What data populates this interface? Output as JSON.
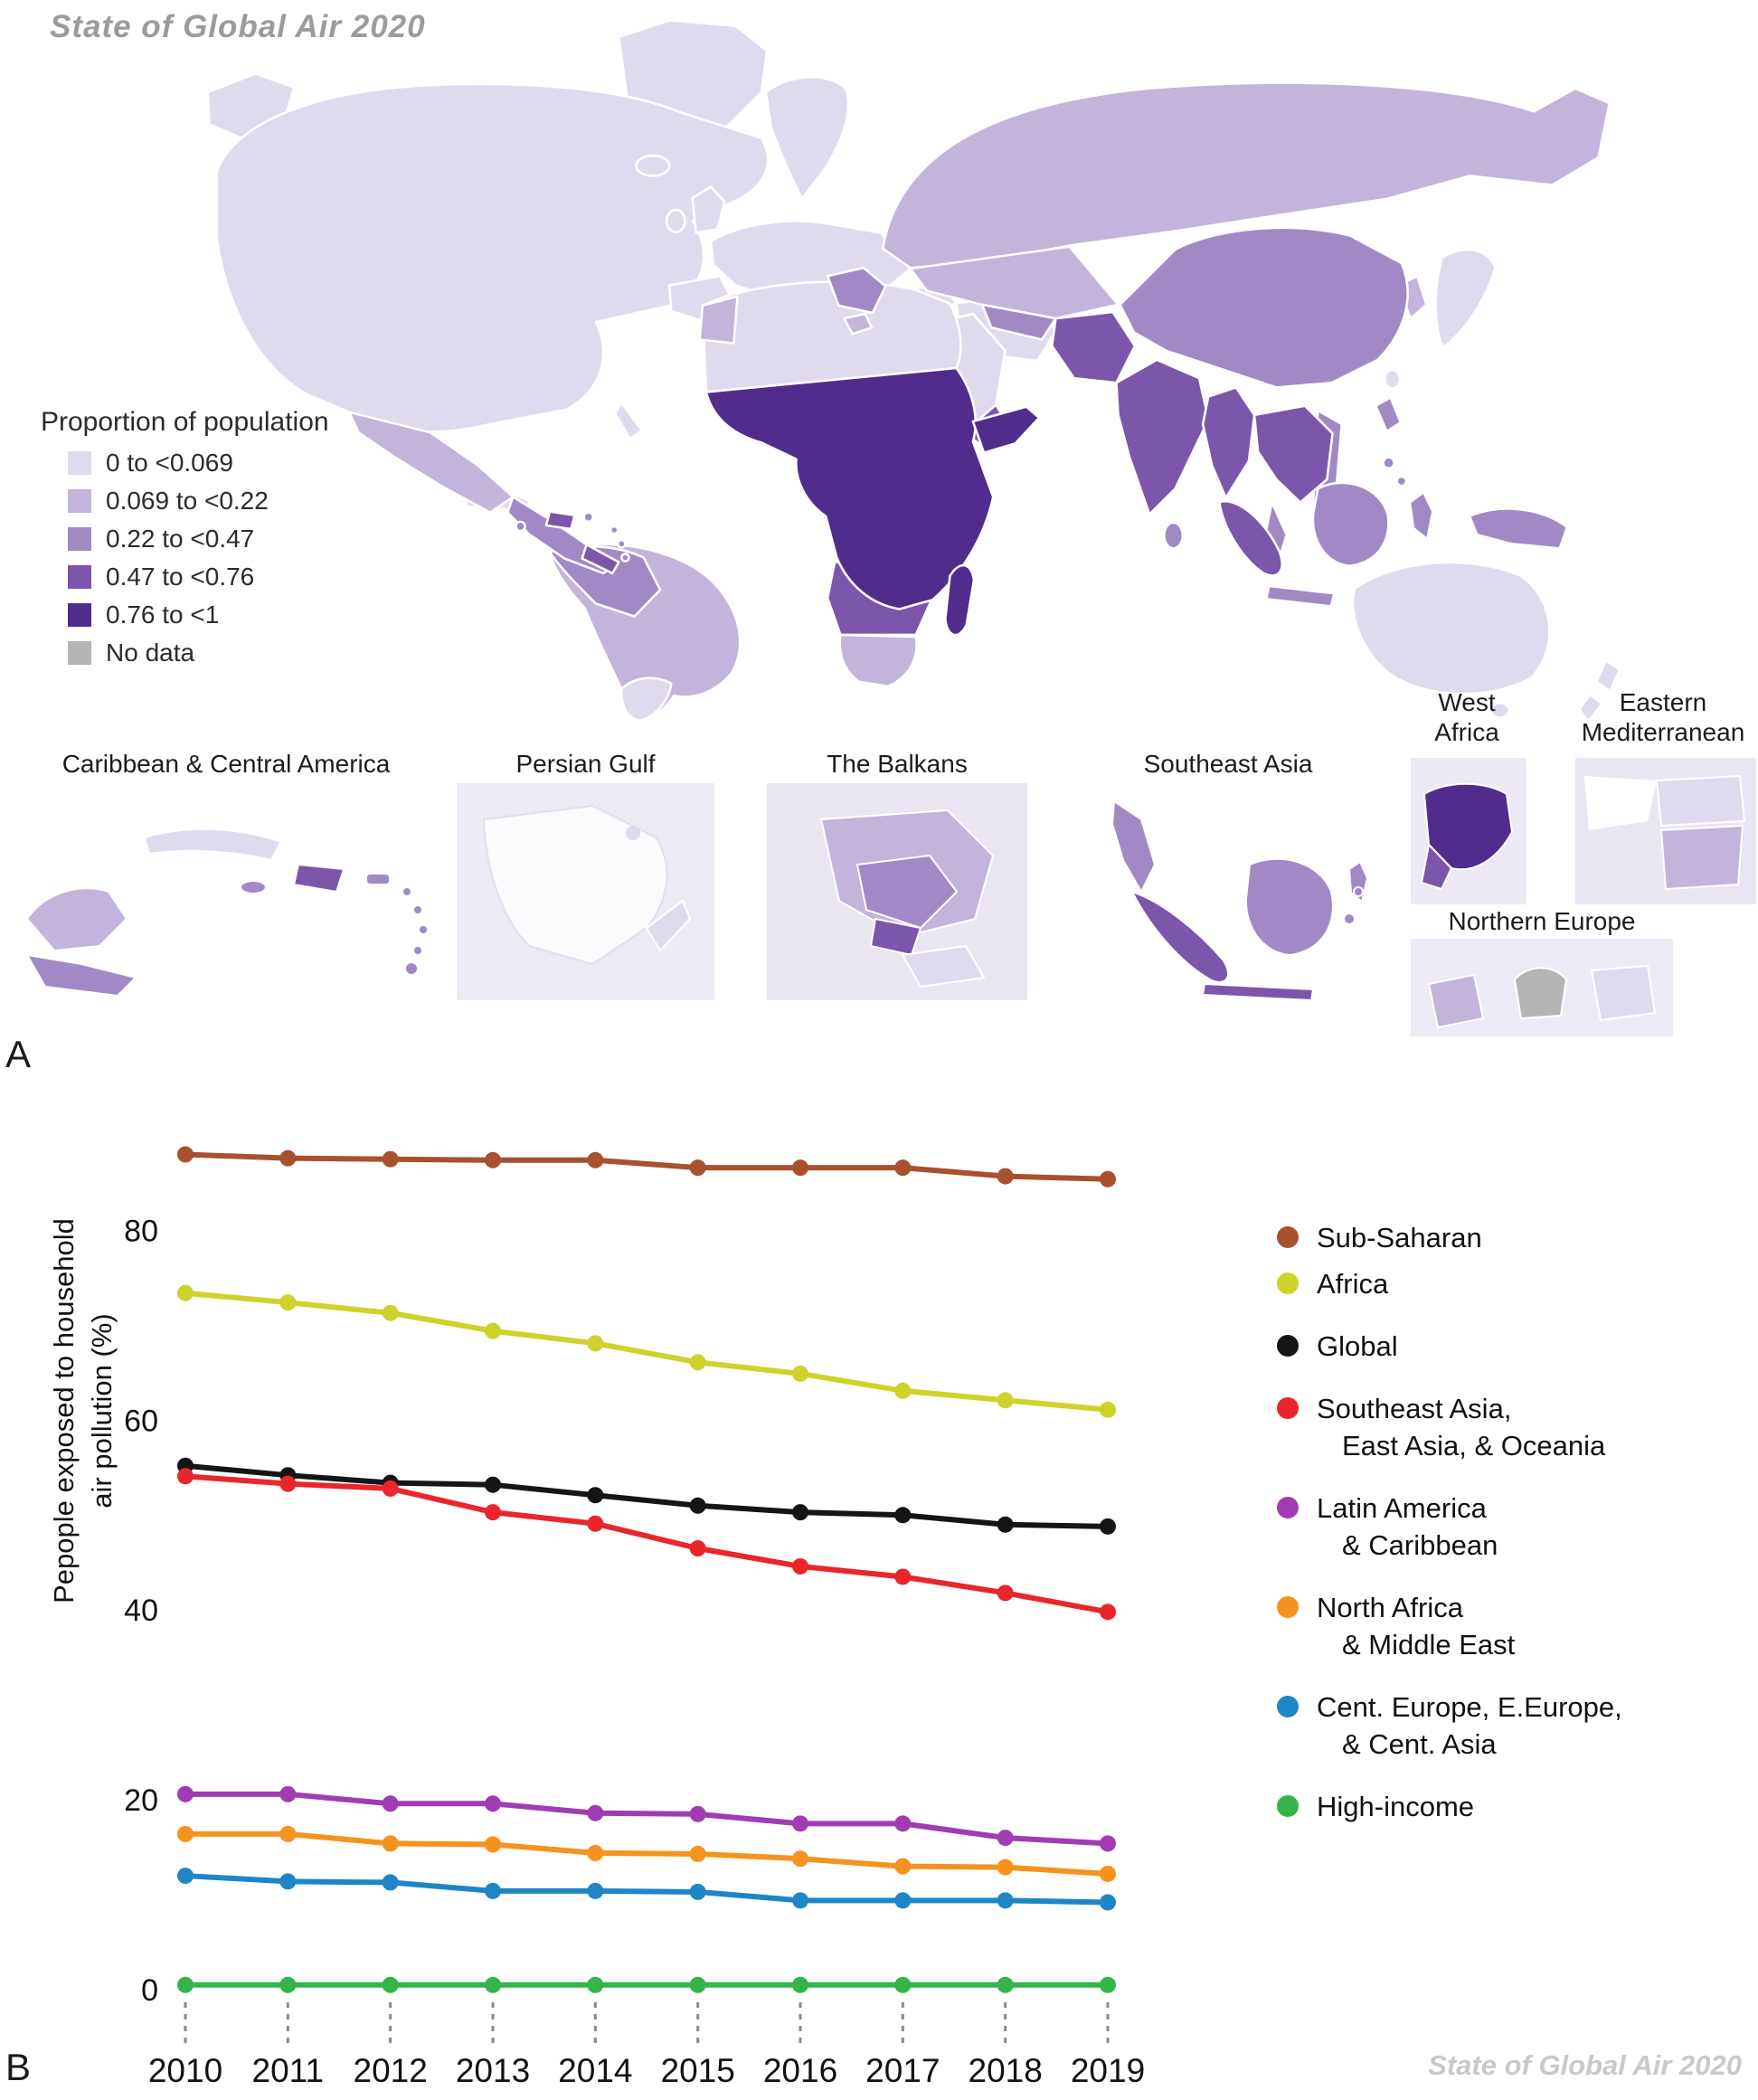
{
  "page": {
    "background": "#ffffff"
  },
  "map_section": {
    "brand_title": "State of Global Air 2020",
    "panel_label": "A",
    "legend": {
      "title": "Proportion of population",
      "items": [
        {
          "label": "0 to <0.069",
          "color": "#dfdaee"
        },
        {
          "label": "0.069 to <0.22",
          "color": "#c3b4dc"
        },
        {
          "label": "0.22 to <0.47",
          "color": "#a189c6"
        },
        {
          "label": "0.47 to <0.76",
          "color": "#7b56ab"
        },
        {
          "label": "0.76 to <1",
          "color": "#502d8c"
        },
        {
          "label": "No data",
          "color": "#b5b5b5"
        }
      ]
    },
    "insets": [
      {
        "title": "Caribbean & Central America"
      },
      {
        "title": "Persian Gulf"
      },
      {
        "title": "The Balkans"
      },
      {
        "title": "Southeast Asia"
      },
      {
        "title": "West Africa"
      },
      {
        "title": "Eastern Mediterranean"
      },
      {
        "title": "Northern Europe"
      }
    ]
  },
  "chart_section": {
    "panel_label": "B",
    "watermark": "State of Global Air 2020",
    "y_axis_label": "Pepople exposed to household\nair pollution (%)"
  },
  "legend": {
    "items": [
      {
        "color": "#a8512e",
        "line1": "Sub-Saharan",
        "line2": ""
      },
      {
        "color": "#cdd32b",
        "line1": "Africa",
        "line2": ""
      },
      {
        "color": "#151515",
        "line1": "Global",
        "line2": ""
      },
      {
        "color": "#e9262b",
        "line1": "Southeast Asia,",
        "line2": "East Asia, & Oceania"
      },
      {
        "color": "#a13cb4",
        "line1": "Latin America",
        "line2": "& Caribbean"
      },
      {
        "color": "#f6921e",
        "line1": "North Africa",
        "line2": "& Middle East"
      },
      {
        "color": "#1e86c7",
        "line1": "Cent. Europe, E.Europe,",
        "line2": "& Cent. Asia"
      },
      {
        "color": "#33b54a",
        "line1": "High-income",
        "line2": ""
      }
    ]
  },
  "chart_data": {
    "type": "line",
    "title": "",
    "xlabel": "",
    "ylabel": "Pepople exposed to household air pollution (%)",
    "x": [
      2010,
      2011,
      2012,
      2013,
      2014,
      2015,
      2016,
      2017,
      2018,
      2019
    ],
    "ylim": [
      0,
      91
    ],
    "yticks": [
      0,
      20,
      40,
      60,
      80
    ],
    "grid": false,
    "legend_position": "right",
    "series": [
      {
        "id": "sub_saharan",
        "name": "Sub-Saharan",
        "color": "#a8512e",
        "values": [
          88.0,
          87.6,
          87.5,
          87.4,
          87.4,
          86.6,
          86.6,
          86.6,
          85.7,
          85.4
        ]
      },
      {
        "id": "africa",
        "name": "Africa",
        "color": "#cdd32b",
        "values": [
          73.4,
          72.4,
          71.3,
          69.4,
          68.1,
          66.1,
          64.9,
          63.1,
          62.1,
          61.1
        ]
      },
      {
        "id": "global",
        "name": "Global",
        "color": "#151515",
        "values": [
          55.2,
          54.2,
          53.4,
          53.2,
          52.1,
          51.0,
          50.3,
          50.0,
          49.0,
          48.8
        ]
      },
      {
        "id": "se_asia_oceania",
        "name": "Southeast Asia, East Asia, & Oceania",
        "color": "#e9262b",
        "values": [
          54.1,
          53.3,
          52.8,
          50.3,
          49.1,
          46.5,
          44.6,
          43.5,
          41.8,
          39.8
        ]
      },
      {
        "id": "latam_caribbean",
        "name": "Latin America & Caribbean",
        "color": "#a13cb4",
        "values": [
          20.6,
          20.6,
          19.6,
          19.6,
          18.6,
          18.5,
          17.5,
          17.5,
          16.0,
          15.4
        ]
      },
      {
        "id": "nafrica_mideast",
        "name": "North Africa & Middle East",
        "color": "#f6921e",
        "values": [
          16.4,
          16.4,
          15.4,
          15.3,
          14.4,
          14.3,
          13.8,
          13.0,
          12.9,
          12.2
        ]
      },
      {
        "id": "ceurope_casia",
        "name": "Cent. Europe, E.Europe, & Cent. Asia",
        "color": "#1e86c7",
        "values": [
          12.0,
          11.4,
          11.3,
          10.4,
          10.4,
          10.3,
          9.4,
          9.4,
          9.4,
          9.2
        ]
      },
      {
        "id": "high_income",
        "name": "High-income",
        "color": "#33b54a",
        "values": [
          0.5,
          0.5,
          0.5,
          0.5,
          0.5,
          0.5,
          0.5,
          0.5,
          0.5,
          0.5
        ]
      }
    ]
  }
}
